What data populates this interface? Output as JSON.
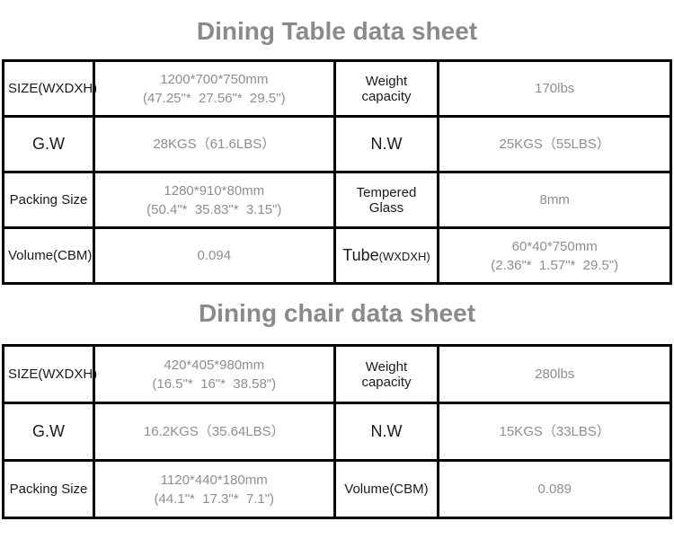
{
  "colors": {
    "background": "#ffffff",
    "table_border": "#000000",
    "label_text": "#1a1a1a",
    "value_text": "#8e8e8e",
    "title_text": "#8a8a8a"
  },
  "tables": [
    {
      "title": "Dining Table data sheet",
      "rows": [
        [
          {
            "kind": "label",
            "text": "SIZE(WXDXH)"
          },
          {
            "kind": "value",
            "lines": [
              "1200*700*750mm",
              "(47.25\"*  27.56\"*  29.5\")"
            ]
          },
          {
            "kind": "label",
            "text": "Weight capacity"
          },
          {
            "kind": "value",
            "lines": [
              "170lbs"
            ]
          }
        ],
        [
          {
            "kind": "label",
            "text": "G.W",
            "big": true
          },
          {
            "kind": "value",
            "lines": [
              "28KGS（61.6LBS）"
            ]
          },
          {
            "kind": "label",
            "text": "N.W",
            "big": true
          },
          {
            "kind": "value",
            "lines": [
              "25KGS（55LBS）"
            ]
          }
        ],
        [
          {
            "kind": "label",
            "text": "Packing Size"
          },
          {
            "kind": "value",
            "lines": [
              "1280*910*80mm",
              "(50.4\"*  35.83\"*  3.15\")"
            ]
          },
          {
            "kind": "label",
            "text": "Tempered Glass"
          },
          {
            "kind": "value",
            "lines": [
              "8mm"
            ]
          }
        ],
        [
          {
            "kind": "label",
            "text": "Volume(CBM)"
          },
          {
            "kind": "value",
            "lines": [
              "0.094"
            ]
          },
          {
            "kind": "label",
            "text": "Tube",
            "small": "(WXDXH)",
            "big": true
          },
          {
            "kind": "value",
            "lines": [
              "60*40*750mm",
              "(2.36\"*  1.57\"*  29.5\")"
            ]
          }
        ]
      ]
    },
    {
      "title": "Dining chair data sheet",
      "rows": [
        [
          {
            "kind": "label",
            "text": "SIZE(WXDXH)"
          },
          {
            "kind": "value",
            "lines": [
              "420*405*980mm",
              "(16.5\"*  16\"*  38.58\")"
            ]
          },
          {
            "kind": "label",
            "text": "Weight capacity"
          },
          {
            "kind": "value",
            "lines": [
              "280lbs"
            ]
          }
        ],
        [
          {
            "kind": "label",
            "text": "G.W",
            "big": true
          },
          {
            "kind": "value",
            "lines": [
              "16.2KGS（35.64LBS）"
            ]
          },
          {
            "kind": "label",
            "text": "N.W",
            "big": true
          },
          {
            "kind": "value",
            "lines": [
              "15KGS（33LBS）"
            ]
          }
        ],
        [
          {
            "kind": "label",
            "text": "Packing Size"
          },
          {
            "kind": "value",
            "lines": [
              "1120*440*180mm",
              "(44.1\"*  17.3\"*  7.1\")"
            ]
          },
          {
            "kind": "label",
            "text": "Volume(CBM)"
          },
          {
            "kind": "value",
            "lines": [
              "0.089"
            ]
          }
        ]
      ]
    }
  ]
}
